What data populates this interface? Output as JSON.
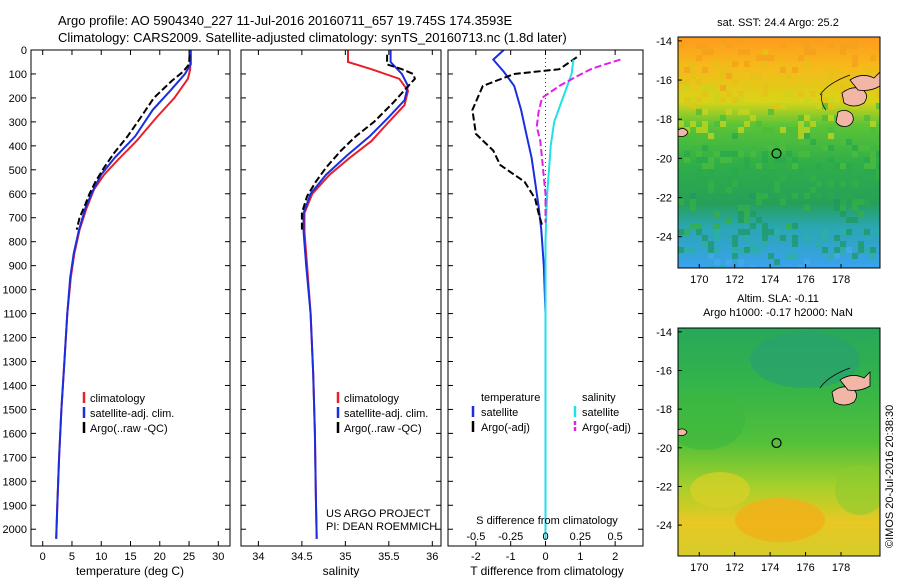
{
  "title": {
    "line1": "Argo profile: AO 5904340_227 11-Jul-2016 20160711_657 19.745S 174.3593E",
    "line2": "Climatology: CARS2009. Satellite-adjusted climatology: synTS_20160713.nc (1.8d later)"
  },
  "colors": {
    "climatology": "#e8202a",
    "satellite": "#1a2ee0",
    "argo": "#000000",
    "sat_salinity": "#22e0e8",
    "argo_salinity": "#e020e8",
    "frame": "#000000"
  },
  "credit": {
    "project": "US ARGO PROJECT",
    "pi": "PI: DEAN ROEMMICH"
  },
  "stamp": "©IMOS 20-Jul-2016 20:38:30",
  "chart_data": [
    {
      "id": "temperature",
      "type": "line",
      "xlabel": "temperature (deg C)",
      "ylabel": "",
      "xlim": [
        -2,
        32
      ],
      "ylim": [
        2070,
        0
      ],
      "xticks": [
        0,
        5,
        10,
        15,
        20,
        25,
        30
      ],
      "xticklabels": [
        "0",
        "5",
        "10",
        "15",
        "20",
        "25",
        "30"
      ],
      "yticks": [
        0,
        100,
        200,
        300,
        400,
        500,
        600,
        700,
        800,
        900,
        1000,
        1100,
        1200,
        1300,
        1400,
        1500,
        1600,
        1700,
        1800,
        1900,
        2000
      ],
      "yticklabels": [
        "0",
        "100",
        "200",
        "300",
        "400",
        "500",
        "600",
        "700",
        "800",
        "900",
        "1000",
        "1100",
        "1200",
        "1300",
        "1400",
        "1500",
        "1600",
        "1700",
        "1800",
        "1900",
        "2000"
      ],
      "legend": [
        "climatology",
        "satellite-adj. clim.",
        "Argo(..raw -QC)"
      ],
      "legend_position": "lower-center",
      "series": [
        {
          "name": "climatology",
          "color": "#e8202a",
          "style": "solid",
          "points": [
            [
              25.2,
              0
            ],
            [
              25.2,
              80
            ],
            [
              24.8,
              120
            ],
            [
              22.5,
              200
            ],
            [
              19.5,
              280
            ],
            [
              16,
              380
            ],
            [
              12.8,
              460
            ],
            [
              10.5,
              520
            ],
            [
              8.8,
              580
            ],
            [
              7.5,
              660
            ],
            [
              6.3,
              750
            ],
            [
              5.4,
              850
            ],
            [
              4.8,
              950
            ],
            [
              4.2,
              1100
            ],
            [
              3.7,
              1300
            ],
            [
              3.2,
              1500
            ],
            [
              2.8,
              1700
            ],
            [
              2.5,
              1900
            ],
            [
              2.3,
              2040
            ]
          ]
        },
        {
          "name": "satellite-adj. clim.",
          "color": "#1a2ee0",
          "style": "solid",
          "points": [
            [
              25.3,
              0
            ],
            [
              25.3,
              60
            ],
            [
              24.3,
              100
            ],
            [
              21.8,
              170
            ],
            [
              18.8,
              250
            ],
            [
              15.8,
              360
            ],
            [
              12.3,
              450
            ],
            [
              10,
              520
            ],
            [
              8.5,
              590
            ],
            [
              7.3,
              660
            ],
            [
              6.2,
              750
            ],
            [
              5.3,
              850
            ],
            [
              4.7,
              950
            ],
            [
              4.2,
              1100
            ],
            [
              3.7,
              1300
            ],
            [
              3.2,
              1500
            ],
            [
              2.8,
              1700
            ],
            [
              2.5,
              1900
            ],
            [
              2.3,
              2040
            ]
          ]
        },
        {
          "name": "Argo(..raw -QC)",
          "color": "#000000",
          "style": "dashed",
          "points": [
            [
              25.1,
              20
            ],
            [
              25,
              60
            ],
            [
              24,
              90
            ],
            [
              22,
              130
            ],
            [
              19,
              200
            ],
            [
              16.5,
              290
            ],
            [
              14.5,
              360
            ],
            [
              12.2,
              430
            ],
            [
              10.5,
              490
            ],
            [
              9,
              550
            ],
            [
              8,
              600
            ],
            [
              7.2,
              650
            ],
            [
              6.3,
              700
            ],
            [
              5.8,
              750
            ]
          ]
        }
      ]
    },
    {
      "id": "salinity",
      "type": "line",
      "xlabel": "salinity",
      "ylabel": "",
      "xlim": [
        33.8,
        36.1
      ],
      "ylim": [
        2070,
        0
      ],
      "xticks": [
        34,
        34.5,
        35,
        35.5,
        36
      ],
      "xticklabels": [
        "34",
        "34.5",
        "35",
        "35.5",
        "36"
      ],
      "legend": [
        "climatology",
        "satellite-adj. clim.",
        "Argo(..raw -QC)"
      ],
      "legend_position": "lower-center",
      "series": [
        {
          "name": "climatology",
          "color": "#e8202a",
          "style": "solid",
          "points": [
            [
              35.03,
              0
            ],
            [
              35.03,
              50
            ],
            [
              35.3,
              80
            ],
            [
              35.62,
              120
            ],
            [
              35.72,
              170
            ],
            [
              35.68,
              230
            ],
            [
              35.5,
              300
            ],
            [
              35.3,
              380
            ],
            [
              35.05,
              450
            ],
            [
              34.82,
              520
            ],
            [
              34.62,
              600
            ],
            [
              34.53,
              680
            ],
            [
              34.53,
              760
            ],
            [
              34.56,
              900
            ],
            [
              34.6,
              1100
            ],
            [
              34.63,
              1350
            ],
            [
              34.65,
              1600
            ],
            [
              34.66,
              1850
            ],
            [
              34.67,
              2040
            ]
          ]
        },
        {
          "name": "satellite-adj. clim.",
          "color": "#1a2ee0",
          "style": "solid",
          "points": [
            [
              35.52,
              0
            ],
            [
              35.52,
              50
            ],
            [
              35.65,
              100
            ],
            [
              35.72,
              150
            ],
            [
              35.68,
              210
            ],
            [
              35.5,
              280
            ],
            [
              35.28,
              360
            ],
            [
              35.02,
              440
            ],
            [
              34.78,
              520
            ],
            [
              34.6,
              600
            ],
            [
              34.52,
              680
            ],
            [
              34.52,
              760
            ],
            [
              34.55,
              900
            ],
            [
              34.6,
              1100
            ],
            [
              34.63,
              1350
            ],
            [
              34.65,
              1600
            ],
            [
              34.66,
              1850
            ],
            [
              34.67,
              2040
            ]
          ]
        },
        {
          "name": "Argo(..raw -QC)",
          "color": "#000000",
          "style": "dashed",
          "points": [
            [
              35.48,
              20
            ],
            [
              35.48,
              60
            ],
            [
              35.65,
              80
            ],
            [
              35.78,
              100
            ],
            [
              35.8,
              120
            ],
            [
              35.7,
              160
            ],
            [
              35.55,
              220
            ],
            [
              35.33,
              300
            ],
            [
              35.12,
              360
            ],
            [
              34.95,
              420
            ],
            [
              34.78,
              490
            ],
            [
              34.66,
              550
            ],
            [
              34.56,
              610
            ],
            [
              34.5,
              680
            ],
            [
              34.5,
              750
            ]
          ]
        }
      ]
    },
    {
      "id": "difference",
      "type": "line",
      "xlabel": "T difference from climatology",
      "xlabel_top": "S difference from climatology",
      "xlim": [
        -2.8,
        2.8
      ],
      "ylim": [
        2070,
        0
      ],
      "xticks": [
        -2,
        -1,
        0,
        1,
        2
      ],
      "xticklabels": [
        "-2",
        "-1",
        "0",
        "1",
        "2"
      ],
      "xticks_top": [
        -0.5,
        -0.25,
        0,
        0.25,
        0.5
      ],
      "xticklabels_top": [
        "-0.5",
        "-0.25",
        "0",
        "0.25",
        "0.5"
      ],
      "legend_headers": [
        "temperature",
        "salinity"
      ],
      "legend": [
        "satellite",
        "Argo(-adj)",
        "satellite",
        "Argo(-adj)"
      ],
      "legend_position": "lower-center",
      "series": [
        {
          "name": "temperature satellite",
          "color": "#1a2ee0",
          "style": "solid",
          "points": [
            [
              -1.2,
              0
            ],
            [
              -1.5,
              40
            ],
            [
              -1.2,
              90
            ],
            [
              -0.9,
              150
            ],
            [
              -0.7,
              250
            ],
            [
              -0.55,
              350
            ],
            [
              -0.4,
              450
            ],
            [
              -0.3,
              550
            ],
            [
              -0.2,
              650
            ],
            [
              -0.12,
              750
            ],
            [
              -0.05,
              900
            ],
            [
              0,
              1100
            ],
            [
              0,
              2040
            ]
          ]
        },
        {
          "name": "temperature Argo(-adj)",
          "color": "#000000",
          "style": "dashed",
          "points": [
            [
              0.9,
              30
            ],
            [
              0.4,
              80
            ],
            [
              -0.9,
              100
            ],
            [
              -1.8,
              150
            ],
            [
              -2.1,
              250
            ],
            [
              -2,
              350
            ],
            [
              -1.5,
              420
            ],
            [
              -1.3,
              480
            ],
            [
              -0.6,
              550
            ],
            [
              -0.3,
              620
            ],
            [
              -0.2,
              680
            ],
            [
              -0.1,
              730
            ]
          ]
        },
        {
          "name": "salinity satellite",
          "color": "#22e0e8",
          "style": "solid",
          "points": [
            [
              0.8,
              40
            ],
            [
              0.75,
              100
            ],
            [
              0.5,
              200
            ],
            [
              0.25,
              300
            ],
            [
              0.15,
              400
            ],
            [
              0.1,
              500
            ],
            [
              0.05,
              600
            ],
            [
              0.02,
              700
            ],
            [
              0,
              800
            ],
            [
              0,
              2040
            ]
          ]
        },
        {
          "name": "salinity Argo(-adj)",
          "color": "#e020e8",
          "style": "dashed",
          "points": [
            [
              2.15,
              40
            ],
            [
              1.7,
              60
            ],
            [
              1.3,
              80
            ],
            [
              0.9,
              110
            ],
            [
              0.4,
              150
            ],
            [
              -0.1,
              200
            ],
            [
              -0.2,
              260
            ],
            [
              -0.25,
              320
            ],
            [
              -0.15,
              380
            ],
            [
              -0.1,
              450
            ],
            [
              -0.05,
              530
            ],
            [
              0,
              600
            ],
            [
              0,
              720
            ]
          ]
        }
      ]
    },
    {
      "id": "sst_map",
      "type": "heatmap",
      "title": "sat. SST: 24.4  Argo: 25.2",
      "xlim": [
        168.8,
        180.2
      ],
      "ylim": [
        -25.6,
        -13.8
      ],
      "xticks": [
        170,
        172,
        174,
        176,
        178
      ],
      "xticklabels": [
        "170",
        "172",
        "174",
        "176",
        "178"
      ],
      "yticks": [
        -14,
        -16,
        -18,
        -20,
        -22,
        -24
      ],
      "yticklabels": [
        "-14",
        "-16",
        "-18",
        "-20",
        "-22",
        "-24"
      ],
      "float_location": [
        174.36,
        -19.75
      ]
    },
    {
      "id": "sla_map",
      "type": "heatmap",
      "title": "Altim. SLA: -0.11",
      "subtitle": "Argo h1000: -0.17 h2000: NaN",
      "xlim": [
        168.8,
        180.2
      ],
      "ylim": [
        -25.6,
        -13.8
      ],
      "xticks": [
        170,
        172,
        174,
        176,
        178
      ],
      "xticklabels": [
        "170",
        "172",
        "174",
        "176",
        "178"
      ],
      "yticks": [
        -14,
        -16,
        -18,
        -20,
        -22,
        -24
      ],
      "yticklabels": [
        "-14",
        "-16",
        "-18",
        "-20",
        "-22",
        "-24"
      ],
      "float_location": [
        174.36,
        -19.75
      ]
    }
  ]
}
